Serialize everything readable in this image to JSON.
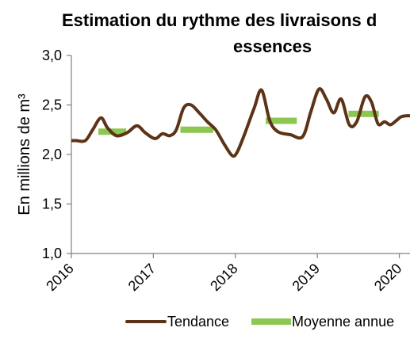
{
  "chart_data": {
    "type": "line",
    "title_line1": "Estimation du rythme des livraisons d",
    "title_line2": "essences",
    "ylabel": "En millions de m³",
    "ylim": [
      1.0,
      3.0
    ],
    "xlim": [
      2016,
      2020.13
    ],
    "y_ticks": [
      "1,0",
      "1,5",
      "2,0",
      "2,5",
      "3,0"
    ],
    "y_tick_values": [
      1.0,
      1.5,
      2.0,
      2.5,
      3.0
    ],
    "x_ticks": [
      "2016",
      "2017",
      "2018",
      "2019",
      "2020"
    ],
    "x_tick_values": [
      2016,
      2017,
      2018,
      2019,
      2020
    ],
    "legend": {
      "position": "bottom",
      "entries": [
        "Tendance",
        "Moyenne annue"
      ]
    },
    "colors": {
      "trend": "#5c3317",
      "average": "#8cc751",
      "axis": "#808080"
    },
    "series": [
      {
        "name": "Tendance",
        "kind": "line",
        "x": [
          2016.0,
          2016.06,
          2016.17,
          2016.26,
          2016.36,
          2016.44,
          2016.55,
          2016.68,
          2016.8,
          2016.9,
          2017.02,
          2017.11,
          2017.2,
          2017.28,
          2017.37,
          2017.46,
          2017.56,
          2017.66,
          2017.76,
          2017.86,
          2017.96,
          2018.02,
          2018.11,
          2018.23,
          2018.32,
          2018.42,
          2018.52,
          2018.67,
          2018.82,
          2018.92,
          2019.02,
          2019.11,
          2019.2,
          2019.29,
          2019.39,
          2019.48,
          2019.58,
          2019.66,
          2019.74,
          2019.82,
          2019.89,
          2019.96,
          2020.02,
          2020.08,
          2020.13
        ],
        "y": [
          2.14,
          2.14,
          2.14,
          2.25,
          2.37,
          2.27,
          2.19,
          2.22,
          2.29,
          2.22,
          2.16,
          2.21,
          2.19,
          2.25,
          2.47,
          2.5,
          2.42,
          2.33,
          2.25,
          2.11,
          1.99,
          2.02,
          2.2,
          2.47,
          2.65,
          2.34,
          2.23,
          2.2,
          2.18,
          2.43,
          2.66,
          2.56,
          2.42,
          2.56,
          2.3,
          2.33,
          2.58,
          2.53,
          2.31,
          2.33,
          2.3,
          2.34,
          2.38,
          2.39,
          2.39
        ]
      },
      {
        "name": "Moyenne annue",
        "kind": "segments",
        "segments": [
          {
            "x0": 2016.33,
            "x1": 2016.67,
            "y": 2.23
          },
          {
            "x0": 2017.33,
            "x1": 2017.73,
            "y": 2.25
          },
          {
            "x0": 2018.37,
            "x1": 2018.75,
            "y": 2.34
          },
          {
            "x0": 2019.38,
            "x1": 2019.75,
            "y": 2.41
          }
        ]
      }
    ]
  }
}
